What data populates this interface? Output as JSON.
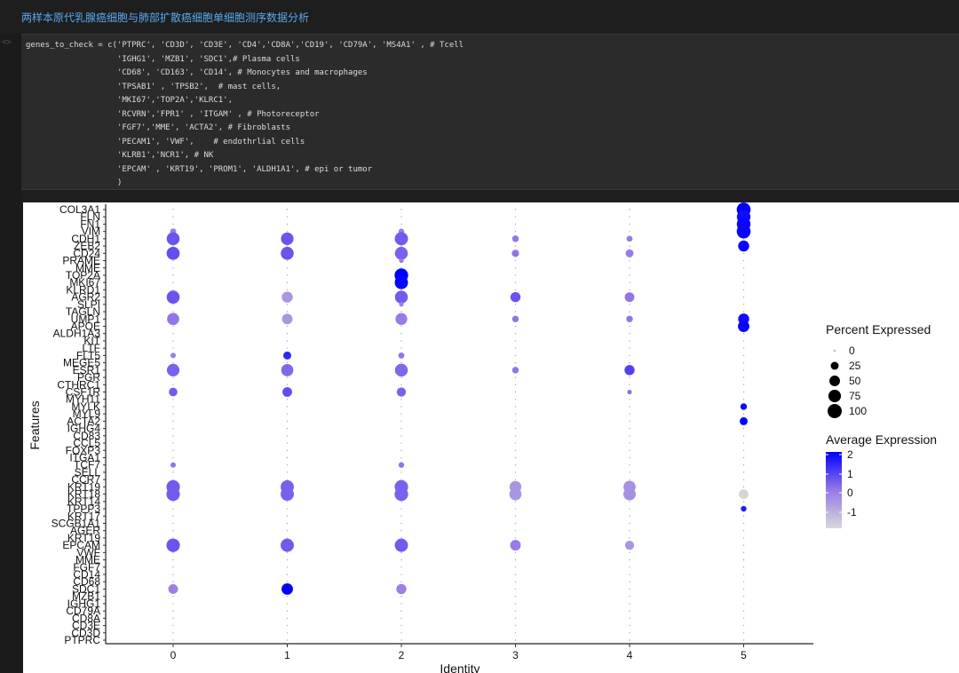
{
  "notebook": {
    "title": "两样本原代乳腺癌细胞与肺部扩散癌细胞单细胞测序数据分析",
    "gutter_mark": "<>",
    "code_lines": [
      "genes_to_check = c('PTPRC', 'CD3D', 'CD3E', 'CD4','CD8A','CD19', 'CD79A', 'MS4A1' , # Tcell",
      "                   'IGHG1', 'MZB1', 'SDC1',# Plasma cells",
      "                   'CD68', 'CD163', 'CD14', # Monocytes and macrophages",
      "                   'TPSAB1' , 'TPSB2',  # mast cells,",
      "                   'MKI67','TOP2A','KLRC1',",
      "                   'RCVRN','FPR1' , 'ITGAM' , # Photoreceptor",
      "                   'FGF7','MME', 'ACTA2', # Fibroblasts",
      "                   'PECAM1', 'VWF',    # endothrlial cells",
      "                   'KLRB1','NCR1', # NK",
      "                   'EPCAM' , 'KRT19', 'PROM1', 'ALDH1A1', # epi or tumor",
      "                   )"
    ]
  },
  "chart_data": {
    "type": "scatter",
    "subtype": "dot-plot",
    "xlabel": "Identity",
    "ylabel": "Features",
    "categories": [
      "0",
      "1",
      "2",
      "3",
      "4",
      "5"
    ],
    "features": [
      "PTPRC",
      "CD3D",
      "CD3E",
      "CD8A",
      "CD79A",
      "IGHG1",
      "MZB1",
      "SDC1",
      "CD68",
      "CD14",
      "FGF7",
      "MME",
      "VWF",
      "EPCAM",
      "KRT19",
      "AGER",
      "SCGB1A1",
      "KRT17",
      "TPPP3",
      "KRT14",
      "KRT18",
      "KRT19",
      "CCR7",
      "SELL",
      "TCF7",
      "ITGA1",
      "FOXP3",
      "CCL5",
      "CD83",
      "IGHG4",
      "ACTA2",
      "MYL9",
      "MYLK",
      "MYH11",
      "CSF1R",
      "CTHRC1",
      "PGR",
      "ESR1",
      "MEGE5",
      "FLT5",
      "LTF",
      "KIT",
      "ALDH1A3",
      "APOE",
      "UMP1",
      "TAGLN",
      "SLPI",
      "AGR2",
      "KLRD1",
      "MKI67",
      "TOP2A",
      "MME",
      "PRAME",
      "CD24",
      "ZEB2",
      "CDH1",
      "VIM",
      "FN1",
      "FLN",
      "COL3A1"
    ],
    "legend_size": {
      "title": "Percent Expressed",
      "ticks": [
        "0",
        "25",
        "50",
        "75",
        "100"
      ],
      "placement": "right"
    },
    "legend_color": {
      "title": "Average Expression",
      "ticks": [
        "2",
        "1",
        "0",
        "-1"
      ],
      "range": [
        -1.5,
        2.2
      ],
      "low_color": "#d9d9d9",
      "high_color": "#0000ff",
      "placement": "right"
    },
    "points": [
      {
        "feature": "COL3A1",
        "x": "5",
        "pct": 95,
        "avg": 2.2
      },
      {
        "feature": "FLN",
        "x": "5",
        "pct": 90,
        "avg": 2.0
      },
      {
        "feature": "FN1",
        "x": "5",
        "pct": 92,
        "avg": 2.1
      },
      {
        "feature": "VIM",
        "x": "5",
        "pct": 95,
        "avg": 2.1
      },
      {
        "feature": "VIM",
        "x": "0",
        "pct": 12,
        "avg": 0.2
      },
      {
        "feature": "VIM",
        "x": "2",
        "pct": 10,
        "avg": 0.2
      },
      {
        "feature": "CDH1",
        "x": "0",
        "pct": 80,
        "avg": 0.9
      },
      {
        "feature": "CDH1",
        "x": "1",
        "pct": 75,
        "avg": 0.9
      },
      {
        "feature": "CDH1",
        "x": "2",
        "pct": 85,
        "avg": 0.8
      },
      {
        "feature": "CDH1",
        "x": "3",
        "pct": 15,
        "avg": 0.4
      },
      {
        "feature": "CDH1",
        "x": "4",
        "pct": 12,
        "avg": 0.3
      },
      {
        "feature": "ZEB2",
        "x": "5",
        "pct": 55,
        "avg": 2.1
      },
      {
        "feature": "CD24",
        "x": "0",
        "pct": 82,
        "avg": 1.0
      },
      {
        "feature": "CD24",
        "x": "1",
        "pct": 80,
        "avg": 0.9
      },
      {
        "feature": "CD24",
        "x": "2",
        "pct": 80,
        "avg": 0.7
      },
      {
        "feature": "CD24",
        "x": "3",
        "pct": 20,
        "avg": 0.4
      },
      {
        "feature": "CD24",
        "x": "4",
        "pct": 25,
        "avg": 0.3
      },
      {
        "feature": "PRAME",
        "x": "2",
        "pct": 5,
        "avg": 0.3
      },
      {
        "feature": "TOP2A",
        "x": "2",
        "pct": 90,
        "avg": 2.2
      },
      {
        "feature": "MKI67",
        "x": "2",
        "pct": 85,
        "avg": 2.1
      },
      {
        "feature": "AGR2",
        "x": "0",
        "pct": 82,
        "avg": 0.9
      },
      {
        "feature": "AGR2",
        "x": "1",
        "pct": 55,
        "avg": -0.2
      },
      {
        "feature": "AGR2",
        "x": "2",
        "pct": 80,
        "avg": 0.8
      },
      {
        "feature": "AGR2",
        "x": "3",
        "pct": 45,
        "avg": 0.9
      },
      {
        "feature": "AGR2",
        "x": "4",
        "pct": 40,
        "avg": 0.4
      },
      {
        "feature": "SLPI",
        "x": "2",
        "pct": 5,
        "avg": 0.2
      },
      {
        "feature": "UMP1",
        "x": "0",
        "pct": 70,
        "avg": 0.4
      },
      {
        "feature": "UMP1",
        "x": "1",
        "pct": 50,
        "avg": -0.2
      },
      {
        "feature": "UMP1",
        "x": "2",
        "pct": 65,
        "avg": 0.3
      },
      {
        "feature": "UMP1",
        "x": "3",
        "pct": 15,
        "avg": 0.4
      },
      {
        "feature": "UMP1",
        "x": "4",
        "pct": 15,
        "avg": 0.4
      },
      {
        "feature": "UMP1",
        "x": "5",
        "pct": 55,
        "avg": 2.0
      },
      {
        "feature": "APOE",
        "x": "5",
        "pct": 60,
        "avg": 2.1
      },
      {
        "feature": "FLT5",
        "x": "0",
        "pct": 8,
        "avg": 0.3
      },
      {
        "feature": "FLT5",
        "x": "1",
        "pct": 25,
        "avg": 1.6
      },
      {
        "feature": "FLT5",
        "x": "2",
        "pct": 12,
        "avg": 0.4
      },
      {
        "feature": "ESR1",
        "x": "0",
        "pct": 75,
        "avg": 0.7
      },
      {
        "feature": "ESR1",
        "x": "1",
        "pct": 70,
        "avg": 0.6
      },
      {
        "feature": "ESR1",
        "x": "2",
        "pct": 80,
        "avg": 0.6
      },
      {
        "feature": "ESR1",
        "x": "3",
        "pct": 15,
        "avg": 0.4
      },
      {
        "feature": "ESR1",
        "x": "4",
        "pct": 45,
        "avg": 1.2
      },
      {
        "feature": "CSF1R",
        "x": "0",
        "pct": 30,
        "avg": 0.8
      },
      {
        "feature": "CSF1R",
        "x": "1",
        "pct": 40,
        "avg": 1.0
      },
      {
        "feature": "CSF1R",
        "x": "2",
        "pct": 35,
        "avg": 0.7
      },
      {
        "feature": "CSF1R",
        "x": "4",
        "pct": 5,
        "avg": 0.5
      },
      {
        "feature": "MYLK",
        "x": "5",
        "pct": 15,
        "avg": 2.0
      },
      {
        "feature": "ACTA2",
        "x": "5",
        "pct": 25,
        "avg": 2.1
      },
      {
        "feature": "TCF7",
        "x": "0",
        "pct": 8,
        "avg": 0.4
      },
      {
        "feature": "TCF7",
        "x": "2",
        "pct": 10,
        "avg": 0.4
      },
      {
        "feature": "KRT18",
        "x": "0",
        "pct": 88,
        "avg": 0.8
      },
      {
        "feature": "KRT18",
        "x": "1",
        "pct": 85,
        "avg": 0.7
      },
      {
        "feature": "KRT18",
        "x": "2",
        "pct": 90,
        "avg": 0.7
      },
      {
        "feature": "KRT18",
        "x": "3",
        "pct": 70,
        "avg": -0.2
      },
      {
        "feature": "KRT18",
        "x": "4",
        "pct": 72,
        "avg": -0.1
      },
      {
        "feature": "KRT18",
        "x": "5",
        "pct": 40,
        "avg": -1.4
      },
      {
        "feature": "KRT19",
        "x": "0",
        "pct": 88,
        "avg": 0.8
      },
      {
        "feature": "KRT19",
        "x": "1",
        "pct": 85,
        "avg": 0.7
      },
      {
        "feature": "KRT19",
        "x": "2",
        "pct": 88,
        "avg": 0.7
      },
      {
        "feature": "KRT19",
        "x": "3",
        "pct": 65,
        "avg": -0.2
      },
      {
        "feature": "KRT19",
        "x": "4",
        "pct": 70,
        "avg": -0.1
      },
      {
        "feature": "TPPP3",
        "x": "5",
        "pct": 10,
        "avg": 1.8
      },
      {
        "feature": "EPCAM",
        "x": "0",
        "pct": 88,
        "avg": 0.9
      },
      {
        "feature": "EPCAM",
        "x": "1",
        "pct": 85,
        "avg": 0.8
      },
      {
        "feature": "EPCAM",
        "x": "2",
        "pct": 85,
        "avg": 0.8
      },
      {
        "feature": "EPCAM",
        "x": "3",
        "pct": 50,
        "avg": 0.3
      },
      {
        "feature": "EPCAM",
        "x": "4",
        "pct": 35,
        "avg": -0.2
      },
      {
        "feature": "SDC1",
        "x": "0",
        "pct": 40,
        "avg": 0.2
      },
      {
        "feature": "SDC1",
        "x": "1",
        "pct": 60,
        "avg": 2.2
      },
      {
        "feature": "SDC1",
        "x": "2",
        "pct": 45,
        "avg": 0.2
      }
    ]
  }
}
